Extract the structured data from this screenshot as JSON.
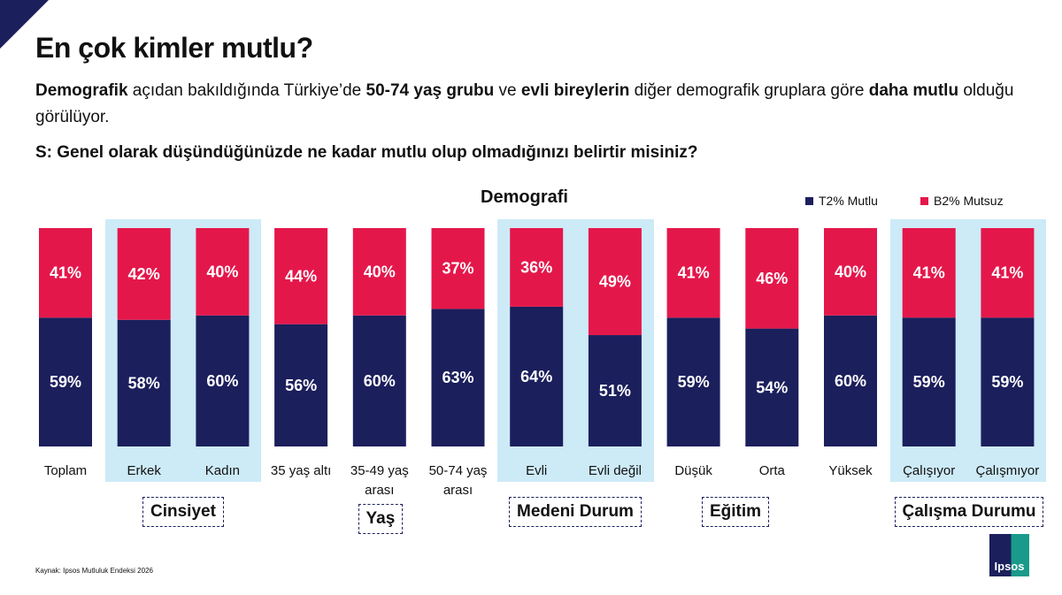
{
  "title": "En çok kimler mutlu?",
  "subtitle": {
    "parts": [
      {
        "text": "Demografik",
        "bold": true
      },
      {
        "text": " açıdan bakıldığında Türkiye’de ",
        "bold": false
      },
      {
        "text": "50-74 yaş grubu",
        "bold": true
      },
      {
        "text": " ve ",
        "bold": false
      },
      {
        "text": "evli bireylerin",
        "bold": true
      },
      {
        "text": " diğer demografik gruplara göre ",
        "bold": false
      },
      {
        "text": "daha mutlu",
        "bold": true
      },
      {
        "text": " olduğu görülüyor.",
        "bold": false
      }
    ]
  },
  "question": "S: Genel olarak düşündüğünüzde ne kadar mutlu olup olmadığınızı belirtir misiniz?",
  "source": "Kaynak: Ipsos Mutluluk Endeksi 2026",
  "logo_text": "Ipsos",
  "colors": {
    "happy": "#1b1f5c",
    "unhappy": "#e4174b",
    "highlight": "#cdeaf7"
  },
  "chart_data": {
    "type": "bar",
    "stacked": true,
    "title": "Demografi",
    "categories": [
      "Toplam",
      "Erkek",
      "Kadın",
      "35 yaş altı",
      "35-49 yaş arası",
      "50-74 yaş arası",
      "Evli",
      "Evli değil",
      "Düşük",
      "Orta",
      "Yüksek",
      "Çalışıyor",
      "Çalışmıyor"
    ],
    "series": [
      {
        "name": "T2% Mutlu",
        "color": "#1b1f5c",
        "values": [
          59,
          58,
          60,
          56,
          60,
          63,
          64,
          51,
          59,
          54,
          60,
          59,
          59
        ]
      },
      {
        "name": "B2% Mutsuz",
        "color": "#e4174b",
        "values": [
          41,
          42,
          40,
          44,
          40,
          37,
          36,
          49,
          41,
          46,
          40,
          41,
          41
        ]
      }
    ],
    "ylim": [
      0,
      100
    ],
    "value_suffix": "%",
    "legend": "top-right",
    "groups": [
      {
        "label": "Cinsiyet",
        "categories": [
          "Erkek",
          "Kadın"
        ],
        "highlighted": true
      },
      {
        "label": "Yaş",
        "categories": [
          "35 yaş altı",
          "35-49 yaş arası",
          "50-74 yaş arası"
        ],
        "highlighted": false
      },
      {
        "label": "Medeni Durum",
        "categories": [
          "Evli",
          "Evli değil"
        ],
        "highlighted": true
      },
      {
        "label": "Eğitim",
        "categories": [
          "Düşük",
          "Orta",
          "Yüksek"
        ],
        "highlighted": false
      },
      {
        "label": "Çalışma Durumu",
        "categories": [
          "Çalışıyor",
          "Çalışmıyor"
        ],
        "highlighted": true
      }
    ]
  }
}
